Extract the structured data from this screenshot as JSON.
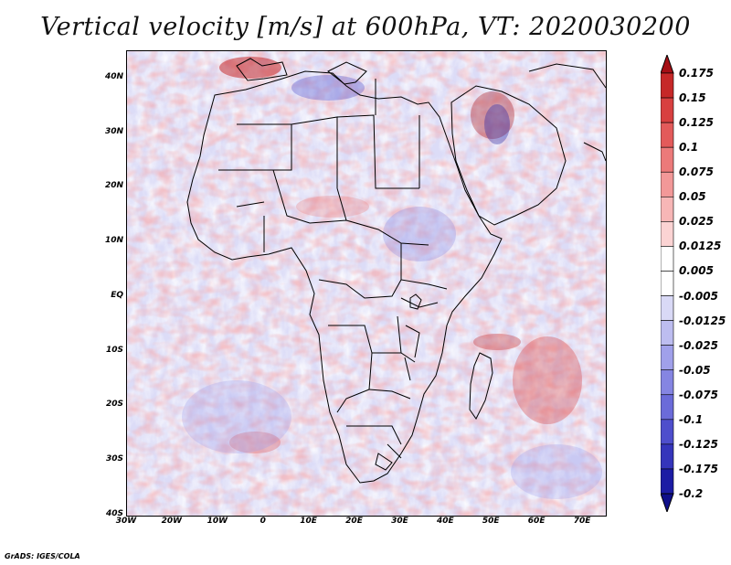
{
  "title": "Vertical velocity [m/s] at 600hPa, VT: 2020030200",
  "credit": "GrADS: IGES/COLA",
  "map": {
    "lat_range": [
      -40,
      45
    ],
    "lon_range": [
      -30,
      75
    ],
    "lat_labels": [
      {
        "text": "40N",
        "lat": 40
      },
      {
        "text": "30N",
        "lat": 30
      },
      {
        "text": "20N",
        "lat": 20
      },
      {
        "text": "10N",
        "lat": 10
      },
      {
        "text": "EQ",
        "lat": 0
      },
      {
        "text": "10S",
        "lat": -10
      },
      {
        "text": "20S",
        "lat": -20
      },
      {
        "text": "30S",
        "lat": -30
      },
      {
        "text": "40S",
        "lat": -40
      }
    ],
    "lon_labels": [
      {
        "text": "30W",
        "lon": -30
      },
      {
        "text": "20W",
        "lon": -20
      },
      {
        "text": "10W",
        "lon": -10
      },
      {
        "text": "0",
        "lon": 0
      },
      {
        "text": "10E",
        "lon": 10
      },
      {
        "text": "20E",
        "lon": 20
      },
      {
        "text": "30E",
        "lon": 30
      },
      {
        "text": "40E",
        "lon": 40
      },
      {
        "text": "50E",
        "lon": 50
      },
      {
        "text": "60E",
        "lon": 60
      },
      {
        "text": "70E",
        "lon": 70
      }
    ]
  },
  "colorbar": {
    "labels": [
      "0.175",
      "0.15",
      "0.125",
      "0.1",
      "0.075",
      "0.05",
      "0.025",
      "0.0125",
      "0.005",
      "-0.005",
      "-0.0125",
      "-0.025",
      "-0.05",
      "-0.075",
      "-0.1",
      "-0.125",
      "-0.175",
      "-0.2"
    ],
    "colors": [
      "#a50f15",
      "#c62828",
      "#d84040",
      "#e35a5a",
      "#ec7a7a",
      "#f29898",
      "#f7b6b6",
      "#fbd3d3",
      "#ffffff",
      "#ffffff",
      "#d9d9f6",
      "#bdbdf0",
      "#a0a0ea",
      "#8585e2",
      "#6b6bd9",
      "#4e4ecc",
      "#3535bb",
      "#1c1ca4",
      "#0f0f8a"
    ]
  }
}
